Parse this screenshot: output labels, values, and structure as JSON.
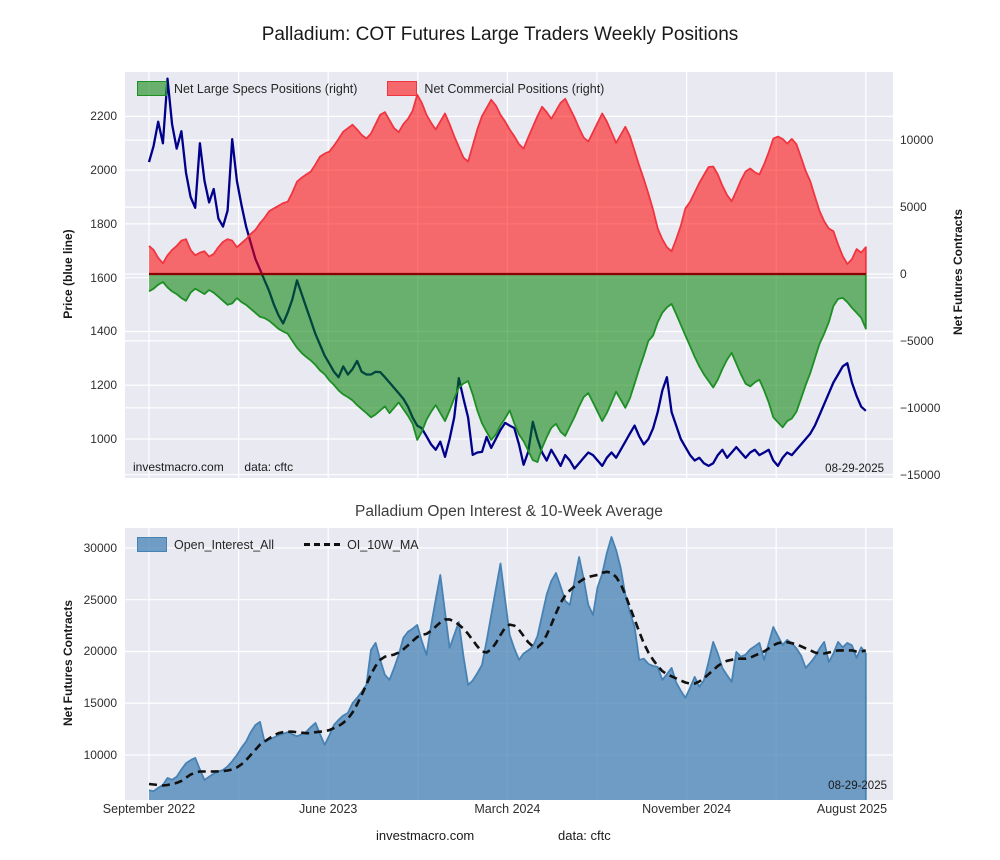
{
  "page": {
    "title": "Palladium: COT Futures Large Traders Weekly Positions"
  },
  "colors": {
    "plot_bg": "#e9e9f2",
    "grid": "#ffffff",
    "price_line": "#00008b",
    "commercial_fill": "rgba(255,0,0,0.55)",
    "commercial_edge": "#f03540",
    "specs_fill": "rgba(0,128,0,0.55)",
    "specs_edge": "#1d8f24",
    "zero_line": "#8b0000",
    "oi_fill": "rgba(70,130,180,0.75)",
    "oi_edge": "#4682b4",
    "ma_line": "#111111"
  },
  "top_chart": {
    "legend": [
      {
        "label": "Net Large Specs Positions (right)",
        "series": "net_large_specs"
      },
      {
        "label": "Net Commercial Positions (right)",
        "series": "net_commercial"
      }
    ],
    "left_axis": {
      "label": "Price (blue line)",
      "ticks": [
        2200,
        2000,
        1800,
        1600,
        1400,
        1200,
        1000
      ]
    },
    "right_axis": {
      "label": "Net Futures Contracts",
      "ticks": [
        10000,
        5000,
        0,
        -5000,
        -10000,
        -15000
      ]
    },
    "annotations": {
      "source": "investmacro.com",
      "data_source": "data: cftc",
      "date": "08-29-2025"
    }
  },
  "bottom_chart": {
    "title": "Palladium Open Interest & 10-Week Average",
    "legend": [
      {
        "label": "Open_Interest_All",
        "series": "open_interest"
      },
      {
        "label": "OI_10W_MA",
        "series": "oi_10w_ma"
      }
    ],
    "left_axis": {
      "label": "Net Futures Contracts",
      "ticks": [
        30000,
        25000,
        20000,
        15000,
        10000
      ]
    },
    "annotations": {
      "date": "08-29-2025"
    }
  },
  "x_axis": {
    "tick_labels": [
      "September 2022",
      "June 2023",
      "March 2024",
      "November 2024",
      "August 2025"
    ]
  },
  "footer": {
    "source": "investmacro.com",
    "data_source": "data: cftc"
  },
  "chart_data": [
    {
      "type": "line+area",
      "title": "Palladium: COT Futures Large Traders Weekly Positions",
      "x_label": "weekly, Sep 2022 - Aug 2025",
      "n_weeks": 156,
      "price_axis": {
        "label": "Price (blue line)",
        "range": [
          855,
          2365
        ],
        "ticks": [
          1000,
          1200,
          1400,
          1600,
          1800,
          2000,
          2200
        ]
      },
      "net_axis": {
        "label": "Net Futures Contracts",
        "range": [
          -15250,
          15100
        ],
        "ticks": [
          -15000,
          -10000,
          -5000,
          0,
          5000,
          10000
        ]
      },
      "series": [
        {
          "name": "price",
          "style": "line",
          "axis": "price",
          "values": [
            2030,
            2090,
            2180,
            2100,
            2340,
            2170,
            2080,
            2145,
            1990,
            1900,
            1860,
            2100,
            1960,
            1880,
            1930,
            1820,
            1790,
            1850,
            2115,
            1960,
            1870,
            1790,
            1730,
            1670,
            1630,
            1590,
            1550,
            1500,
            1460,
            1430,
            1470,
            1520,
            1590,
            1540,
            1490,
            1440,
            1390,
            1350,
            1310,
            1280,
            1250,
            1230,
            1270,
            1240,
            1260,
            1290,
            1250,
            1240,
            1240,
            1250,
            1249,
            1230,
            1210,
            1190,
            1170,
            1150,
            1120,
            1080,
            1050,
            1040,
            1010,
            980,
            960,
            990,
            934,
            1000,
            1080,
            1226,
            1150,
            1080,
            941,
            950,
            952,
            1008,
            967,
            1000,
            1034,
            1060,
            1050,
            1041,
            980,
            904,
            952,
            1064,
            1000,
            950,
            920,
            960,
            930,
            900,
            940,
            920,
            890,
            910,
            930,
            950,
            940,
            920,
            900,
            930,
            950,
            930,
            960,
            990,
            1020,
            1050,
            1010,
            980,
            1000,
            1040,
            1100,
            1180,
            1230,
            1100,
            1050,
            1000,
            970,
            940,
            920,
            930,
            910,
            900,
            910,
            940,
            960,
            930,
            950,
            970,
            950,
            930,
            950,
            960,
            940,
            950,
            960,
            920,
            900,
            930,
            950,
            940,
            960,
            980,
            1000,
            1020,
            1050,
            1090,
            1130,
            1170,
            1210,
            1240,
            1270,
            1282,
            1210,
            1160,
            1120,
            1105
          ]
        },
        {
          "name": "net_commercial",
          "style": "area",
          "axis": "net",
          "values": [
            2100,
            1800,
            1200,
            800,
            1400,
            1800,
            2100,
            2500,
            2600,
            1800,
            1400,
            1600,
            1700,
            1300,
            1500,
            2000,
            2400,
            2600,
            2500,
            2000,
            2300,
            2600,
            3000,
            3300,
            3800,
            4200,
            4700,
            4900,
            5100,
            5300,
            5400,
            6100,
            6900,
            7200,
            7440,
            7660,
            8200,
            8780,
            9000,
            9150,
            9600,
            10100,
            10640,
            10900,
            11160,
            10800,
            10400,
            10120,
            10500,
            11200,
            11900,
            12100,
            11500,
            10900,
            10600,
            11200,
            11600,
            12200,
            13400,
            12800,
            11900,
            11300,
            10800,
            11400,
            12000,
            11200,
            10300,
            9500,
            8700,
            8400,
            9600,
            10800,
            11800,
            12400,
            13020,
            12600,
            11900,
            11400,
            10800,
            10300,
            9700,
            9375,
            10200,
            11000,
            11800,
            12500,
            12100,
            11600,
            12200,
            12800,
            13100,
            12400,
            11700,
            10900,
            10200,
            9900,
            10600,
            11300,
            12000,
            11400,
            10600,
            9800,
            10400,
            11000,
            10300,
            9200,
            8100,
            7100,
            6000,
            4800,
            3400,
            2600,
            2000,
            1700,
            2600,
            3600,
            4900,
            5400,
            6100,
            6800,
            7400,
            8000,
            8036,
            7440,
            6600,
            5900,
            5432,
            6200,
            7000,
            7660,
            7890,
            7600,
            7440,
            8200,
            9100,
            10120,
            10268,
            10100,
            9747,
            10100,
            9700,
            8700,
            7700,
            6920,
            5800,
            4700,
            3943,
            3400,
            3199,
            2200,
            1339,
            744,
            1100,
            1860,
            1600,
            2000
          ]
        },
        {
          "name": "net_large_specs",
          "style": "area",
          "axis": "net",
          "values": [
            -1300,
            -1100,
            -800,
            -600,
            -1000,
            -1300,
            -1500,
            -1800,
            -2000,
            -1400,
            -1100,
            -1300,
            -1500,
            -1200,
            -1400,
            -1700,
            -2000,
            -2300,
            -2200,
            -1800,
            -2100,
            -2300,
            -2600,
            -2900,
            -3200,
            -3300,
            -3500,
            -3800,
            -4100,
            -4300,
            -4464,
            -5000,
            -5506,
            -5900,
            -6200,
            -6473,
            -6800,
            -7217,
            -7500,
            -7961,
            -8300,
            -8705,
            -9000,
            -9200,
            -9449,
            -9800,
            -10100,
            -10400,
            -10714,
            -10500,
            -10200,
            -9900,
            -10400,
            -10000,
            -9600,
            -10100,
            -10600,
            -11200,
            -12400,
            -11800,
            -10900,
            -10300,
            -9800,
            -10400,
            -11000,
            -10200,
            -9300,
            -8500,
            -8184,
            -8000,
            -9000,
            -10200,
            -11160,
            -11800,
            -12400,
            -12000,
            -11300,
            -10800,
            -10200,
            -11160,
            -12000,
            -12500,
            -13200,
            -13914,
            -14063,
            -13000,
            -12200,
            -11500,
            -11200,
            -11800,
            -12100,
            -11400,
            -10700,
            -9900,
            -9200,
            -8900,
            -9600,
            -10300,
            -11000,
            -10400,
            -9600,
            -8800,
            -9400,
            -10000,
            -9300,
            -8200,
            -7100,
            -6100,
            -5000,
            -4600,
            -3600,
            -2900,
            -2500,
            -2232,
            -3000,
            -3800,
            -4600,
            -5400,
            -6200,
            -6900,
            -7500,
            -8000,
            -8482,
            -7900,
            -7100,
            -6400,
            -5900,
            -6700,
            -7500,
            -8200,
            -8400,
            -8100,
            -7900,
            -8700,
            -9600,
            -10714,
            -11086,
            -11458,
            -11000,
            -10800,
            -10300,
            -9300,
            -8300,
            -7400,
            -6300,
            -5200,
            -4464,
            -3600,
            -2400,
            -1860,
            -1786,
            -2100,
            -2530,
            -2900,
            -3274,
            -4092
          ]
        }
      ]
    },
    {
      "type": "area+line",
      "title": "Palladium Open Interest & 10-Week Average",
      "n_weeks": 156,
      "y_axis": {
        "label": "Net Futures Contracts",
        "range": [
          5650,
          31930
        ],
        "ticks": [
          10000,
          15000,
          20000,
          25000,
          30000
        ]
      },
      "series": [
        {
          "name": "open_interest",
          "style": "area",
          "values": [
            6600,
            6500,
            6816,
            7100,
            7778,
            7600,
            7900,
            8600,
            9200,
            9500,
            9714,
            8600,
            7585,
            7900,
            8200,
            8400,
            8551,
            8900,
            9400,
            10000,
            10700,
            11300,
            12200,
            12900,
            13192,
            11262,
            11500,
            11700,
            11900,
            12050,
            12200,
            12000,
            11800,
            12000,
            12228,
            12700,
            13100,
            12000,
            10972,
            11900,
            12903,
            13400,
            13800,
            14062,
            15000,
            15511,
            16100,
            16767,
            20148,
            20824,
            19200,
            17733,
            17250,
            18400,
            19665,
            21307,
            21900,
            22200,
            22562,
            21000,
            19665,
            22500,
            25000,
            27392,
            23818,
            20341,
            21600,
            22852,
            19500,
            16767,
            17200,
            17900,
            18699,
            21000,
            23500,
            26000,
            28500,
            25000,
            21597,
            20300,
            19182,
            19800,
            20100,
            20438,
            21500,
            23500,
            25500,
            26800,
            27585,
            26300,
            24900,
            24494,
            26800,
            29131,
            27000,
            24500,
            23528,
            26233,
            27500,
            29500,
            31063,
            29800,
            28068,
            25500,
            23800,
            22369,
            19182,
            19300,
            18800,
            18600,
            18506,
            17250,
            17800,
            18409,
            17000,
            16200,
            15511,
            16500,
            17540,
            16600,
            17200,
            19000,
            20921,
            19800,
            18400,
            17700,
            17057,
            19955,
            19500,
            19700,
            20200,
            20500,
            20824,
            19182,
            20800,
            22369,
            21500,
            20631,
            21114,
            20800,
            20300,
            19600,
            18409,
            18900,
            19472,
            20300,
            20921,
            18989,
            19800,
            20921,
            20400,
            20824,
            20600,
            19375,
            20400,
            19800
          ]
        },
        {
          "name": "oi_10w_ma",
          "style": "dashed-line",
          "values": [
            7200,
            7150,
            7100,
            7050,
            7100,
            7200,
            7300,
            7500,
            7800,
            8100,
            8300,
            8400,
            8400,
            8400,
            8400,
            8420,
            8450,
            8500,
            8600,
            8800,
            9100,
            9500,
            10000,
            10500,
            11000,
            11300,
            11600,
            11900,
            12100,
            12200,
            12250,
            12250,
            12200,
            12150,
            12100,
            12100,
            12200,
            12250,
            12300,
            12400,
            12600,
            12800,
            13100,
            13500,
            14100,
            14900,
            15800,
            16800,
            17800,
            18600,
            19200,
            19500,
            19600,
            19700,
            19900,
            20200,
            20600,
            21000,
            21400,
            21600,
            21700,
            22000,
            22400,
            22800,
            23100,
            23100,
            22900,
            22600,
            22200,
            21700,
            21100,
            20500,
            20000,
            19900,
            20200,
            20800,
            21600,
            22300,
            22600,
            22500,
            22100,
            21500,
            20900,
            20500,
            20400,
            20800,
            21600,
            22600,
            23700,
            24700,
            25400,
            25900,
            26300,
            26700,
            27000,
            27200,
            27300,
            27400,
            27600,
            27700,
            27600,
            27200,
            26500,
            25500,
            24300,
            23100,
            21900,
            20800,
            19900,
            19200,
            18600,
            18100,
            17800,
            17600,
            17400,
            17200,
            17000,
            16900,
            16900,
            17100,
            17400,
            17800,
            18200,
            18600,
            18900,
            19100,
            19200,
            19300,
            19300,
            19300,
            19400,
            19600,
            19800,
            20000,
            20300,
            20600,
            20800,
            20900,
            20900,
            20800,
            20700,
            20500,
            20300,
            20100,
            19900,
            19800,
            19800,
            19900,
            20000,
            20100,
            20100,
            20100,
            20100,
            20000,
            20000,
            20100
          ]
        }
      ]
    }
  ]
}
